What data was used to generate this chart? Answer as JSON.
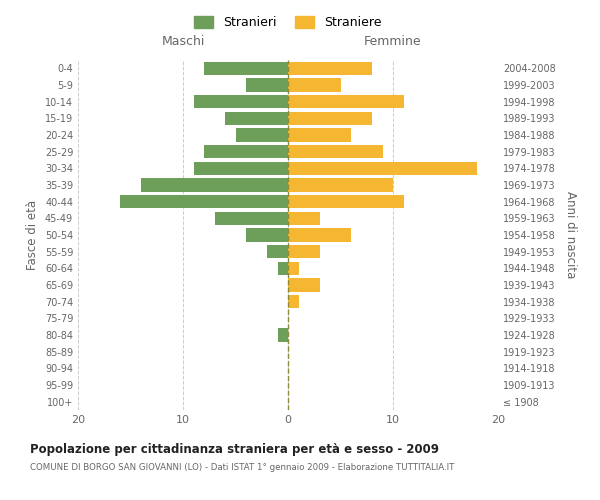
{
  "age_groups": [
    "100+",
    "95-99",
    "90-94",
    "85-89",
    "80-84",
    "75-79",
    "70-74",
    "65-69",
    "60-64",
    "55-59",
    "50-54",
    "45-49",
    "40-44",
    "35-39",
    "30-34",
    "25-29",
    "20-24",
    "15-19",
    "10-14",
    "5-9",
    "0-4"
  ],
  "birth_years": [
    "≤ 1908",
    "1909-1913",
    "1914-1918",
    "1919-1923",
    "1924-1928",
    "1929-1933",
    "1934-1938",
    "1939-1943",
    "1944-1948",
    "1949-1953",
    "1954-1958",
    "1959-1963",
    "1964-1968",
    "1969-1973",
    "1974-1978",
    "1979-1983",
    "1984-1988",
    "1989-1993",
    "1994-1998",
    "1999-2003",
    "2004-2008"
  ],
  "maschi": [
    0,
    0,
    0,
    0,
    1,
    0,
    0,
    0,
    1,
    2,
    4,
    7,
    16,
    14,
    9,
    8,
    5,
    6,
    9,
    4,
    8
  ],
  "femmine": [
    0,
    0,
    0,
    0,
    0,
    0,
    1,
    3,
    1,
    3,
    6,
    3,
    11,
    10,
    18,
    9,
    6,
    8,
    11,
    5,
    8
  ],
  "maschi_color": "#6d9e5a",
  "femmine_color": "#f5b731",
  "background_color": "#ffffff",
  "grid_color": "#cccccc",
  "title": "Popolazione per cittadinanza straniera per età e sesso - 2009",
  "subtitle": "COMUNE DI BORGO SAN GIOVANNI (LO) - Dati ISTAT 1° gennaio 2009 - Elaborazione TUTTITALIA.IT",
  "ylabel_left": "Fasce di età",
  "ylabel_right": "Anni di nascita",
  "xlabel_left": "Maschi",
  "xlabel_right": "Femmine",
  "legend_stranieri": "Stranieri",
  "legend_straniere": "Straniere",
  "xlim": 20,
  "bar_height": 0.8,
  "dashed_line_color": "#8b8b3a",
  "label_color": "#666666",
  "title_color": "#222222"
}
